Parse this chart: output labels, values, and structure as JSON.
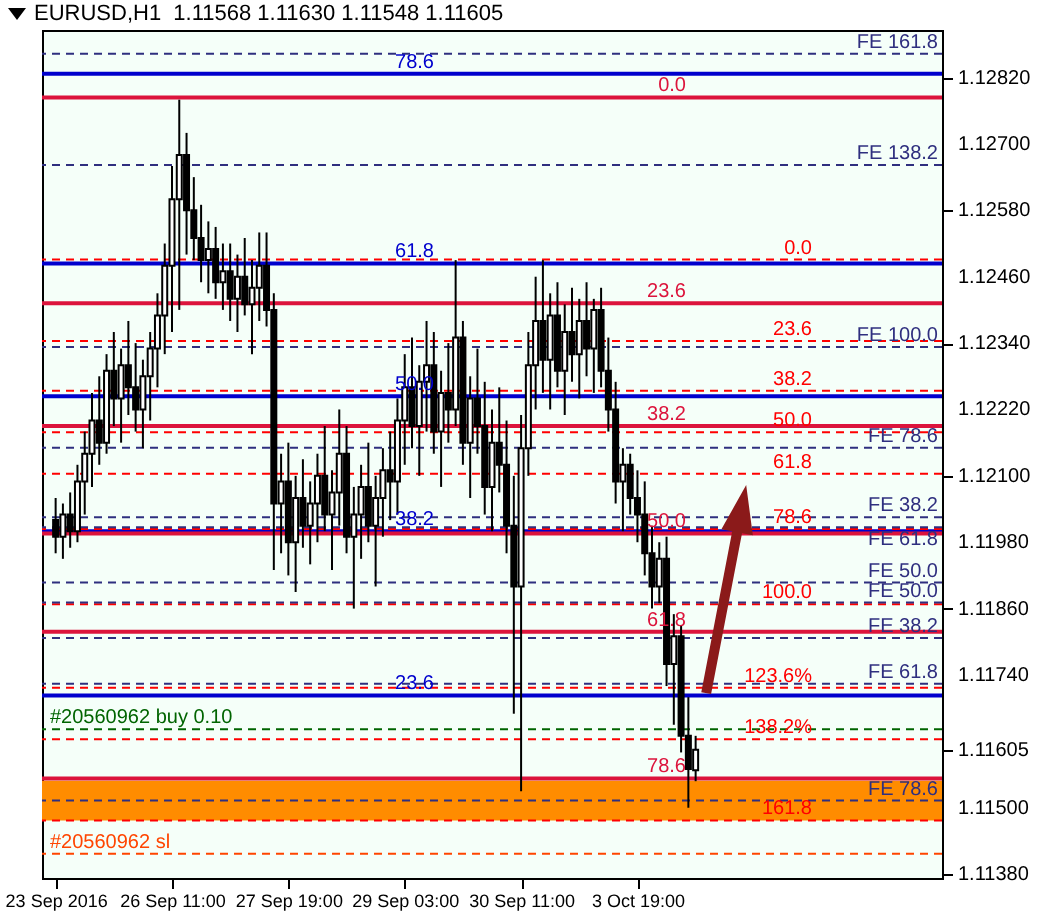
{
  "chart_data": {
    "type": "candlestick",
    "title": "EURUSD,H1  1.11568 1.11630 1.11548 1.11605",
    "color": "#000000",
    "grid": false,
    "categories": [
      "23 Sep 2016",
      null,
      null,
      null,
      null,
      null,
      null,
      null,
      null,
      null,
      null,
      null,
      null,
      null,
      null,
      null,
      "26 Sep 11:00",
      null,
      null,
      null,
      null,
      null,
      null,
      null,
      null,
      null,
      null,
      null,
      null,
      null,
      null,
      null,
      "27 Sep 19:00",
      null,
      null,
      null,
      null,
      null,
      null,
      null,
      null,
      null,
      null,
      null,
      null,
      null,
      null,
      null,
      "29 Sep 03:00",
      null,
      null,
      null,
      null,
      null,
      null,
      null,
      null,
      null,
      null,
      null,
      null,
      null,
      null,
      null,
      "30 Sep 11:00",
      null,
      null,
      null,
      null,
      null,
      null,
      null,
      null,
      null,
      null,
      null,
      null,
      null,
      null,
      null,
      "3 Oct 19:00",
      null,
      null,
      null,
      null,
      null,
      null,
      null,
      null,
      null,
      null,
      null,
      null,
      null,
      null,
      null,
      null,
      null,
      null,
      null,
      null,
      null,
      null,
      null,
      null,
      null,
      null,
      null,
      null,
      null,
      null,
      null,
      null,
      null,
      null,
      null,
      null,
      null,
      null,
      null,
      null
    ],
    "ohlc": [
      [
        1.1202,
        1.1206,
        1.1196,
        1.1199
      ],
      [
        1.1199,
        1.1205,
        1.1195,
        1.1203
      ],
      [
        1.1203,
        1.1207,
        1.1197,
        1.12
      ],
      [
        1.12,
        1.1212,
        1.1198,
        1.1209
      ],
      [
        1.1209,
        1.1218,
        1.1203,
        1.1214
      ],
      [
        1.1214,
        1.1225,
        1.1208,
        1.122
      ],
      [
        1.122,
        1.1228,
        1.1212,
        1.1216
      ],
      [
        1.1216,
        1.1232,
        1.1214,
        1.1229
      ],
      [
        1.1229,
        1.1236,
        1.1219,
        1.1224
      ],
      [
        1.1224,
        1.1233,
        1.1216,
        1.123
      ],
      [
        1.123,
        1.1238,
        1.1221,
        1.1226
      ],
      [
        1.1226,
        1.1234,
        1.1218,
        1.1222
      ],
      [
        1.1222,
        1.1231,
        1.1215,
        1.1228
      ],
      [
        1.1228,
        1.1236,
        1.122,
        1.1233
      ],
      [
        1.1233,
        1.1243,
        1.1226,
        1.1239
      ],
      [
        1.1239,
        1.1252,
        1.1232,
        1.1248
      ],
      [
        1.1248,
        1.1266,
        1.1236,
        1.126
      ],
      [
        1.126,
        1.1278,
        1.124,
        1.1268
      ],
      [
        1.1268,
        1.1272,
        1.125,
        1.1258
      ],
      [
        1.1258,
        1.1264,
        1.1249,
        1.1253
      ],
      [
        1.1253,
        1.1259,
        1.1245,
        1.1249
      ],
      [
        1.1249,
        1.1256,
        1.1243,
        1.1251
      ],
      [
        1.1251,
        1.1255,
        1.1242,
        1.1245
      ],
      [
        1.1245,
        1.1252,
        1.124,
        1.1247
      ],
      [
        1.1247,
        1.1252,
        1.1238,
        1.1242
      ],
      [
        1.1242,
        1.125,
        1.1236,
        1.1246
      ],
      [
        1.1246,
        1.1253,
        1.1239,
        1.1241
      ],
      [
        1.1241,
        1.1249,
        1.1232,
        1.1244
      ],
      [
        1.1244,
        1.1254,
        1.1238,
        1.1248
      ],
      [
        1.1248,
        1.1254,
        1.1237,
        1.124
      ],
      [
        1.124,
        1.1243,
        1.1193,
        1.1205
      ],
      [
        1.1205,
        1.1214,
        1.1196,
        1.1209
      ],
      [
        1.1209,
        1.1216,
        1.1192,
        1.1198
      ],
      [
        1.1198,
        1.121,
        1.1189,
        1.1206
      ],
      [
        1.1206,
        1.1213,
        1.1197,
        1.1201
      ],
      [
        1.1201,
        1.1209,
        1.1194,
        1.1205
      ],
      [
        1.1205,
        1.1214,
        1.1198,
        1.121
      ],
      [
        1.121,
        1.1219,
        1.12,
        1.1203
      ],
      [
        1.1203,
        1.1211,
        1.1193,
        1.1207
      ],
      [
        1.1207,
        1.1222,
        1.1201,
        1.1214
      ],
      [
        1.1214,
        1.1219,
        1.1196,
        1.1199
      ],
      [
        1.1199,
        1.1208,
        1.1186,
        1.1203
      ],
      [
        1.1203,
        1.1212,
        1.1195,
        1.1208
      ],
      [
        1.1208,
        1.1216,
        1.1198,
        1.1201
      ],
      [
        1.1201,
        1.121,
        1.119,
        1.1206
      ],
      [
        1.1206,
        1.1215,
        1.1199,
        1.1211
      ],
      [
        1.1211,
        1.1218,
        1.1202,
        1.1209
      ],
      [
        1.1209,
        1.1224,
        1.1203,
        1.122
      ],
      [
        1.122,
        1.1232,
        1.1212,
        1.1226
      ],
      [
        1.1226,
        1.1235,
        1.1215,
        1.1219
      ],
      [
        1.1219,
        1.123,
        1.121,
        1.1227
      ],
      [
        1.1227,
        1.1238,
        1.1218,
        1.123
      ],
      [
        1.123,
        1.1236,
        1.1214,
        1.1218
      ],
      [
        1.1218,
        1.1229,
        1.1208,
        1.1225
      ],
      [
        1.1225,
        1.1234,
        1.1216,
        1.1222
      ],
      [
        1.1222,
        1.1249,
        1.1219,
        1.1235
      ],
      [
        1.1235,
        1.1238,
        1.1212,
        1.1216
      ],
      [
        1.1216,
        1.1228,
        1.1206,
        1.1224
      ],
      [
        1.1224,
        1.1233,
        1.1214,
        1.1219
      ],
      [
        1.1219,
        1.1227,
        1.1203,
        1.1208
      ],
      [
        1.1208,
        1.1222,
        1.12,
        1.1216
      ],
      [
        1.1216,
        1.1226,
        1.1207,
        1.1212
      ],
      [
        1.1212,
        1.122,
        1.1196,
        1.1201
      ],
      [
        1.1201,
        1.121,
        1.1167,
        1.119
      ],
      [
        1.119,
        1.1221,
        1.1153,
        1.1215
      ],
      [
        1.1215,
        1.1236,
        1.121,
        1.123
      ],
      [
        1.123,
        1.1246,
        1.1222,
        1.1238
      ],
      [
        1.1238,
        1.1249,
        1.1225,
        1.1231
      ],
      [
        1.1231,
        1.1243,
        1.1222,
        1.1239
      ],
      [
        1.1239,
        1.1245,
        1.1226,
        1.1229
      ],
      [
        1.1229,
        1.1241,
        1.1221,
        1.1236
      ],
      [
        1.1236,
        1.1244,
        1.1227,
        1.1232
      ],
      [
        1.1232,
        1.1242,
        1.1224,
        1.1238
      ],
      [
        1.1238,
        1.1245,
        1.1228,
        1.1233
      ],
      [
        1.1233,
        1.1242,
        1.1225,
        1.124
      ],
      [
        1.124,
        1.1244,
        1.1226,
        1.1229
      ],
      [
        1.1229,
        1.1235,
        1.1218,
        1.1222
      ],
      [
        1.1222,
        1.1227,
        1.1205,
        1.1209
      ],
      [
        1.1209,
        1.1215,
        1.12,
        1.1212
      ],
      [
        1.1212,
        1.1214,
        1.1203,
        1.1206
      ],
      [
        1.1206,
        1.1211,
        1.1198,
        1.1203
      ],
      [
        1.1203,
        1.1209,
        1.1192,
        1.1196
      ],
      [
        1.1196,
        1.1201,
        1.1186,
        1.119
      ],
      [
        1.119,
        1.1198,
        1.1187,
        1.1195
      ],
      [
        1.1195,
        1.1199,
        1.1172,
        1.1176
      ],
      [
        1.1176,
        1.1185,
        1.1165,
        1.1181
      ],
      [
        1.1181,
        1.1183,
        1.116,
        1.1163
      ],
      [
        1.1163,
        1.117,
        1.115,
        1.1157
      ],
      [
        1.11568,
        1.1163,
        1.11548,
        1.11605
      ],
      null,
      null,
      null,
      null,
      null,
      null,
      null,
      null,
      null,
      null,
      null,
      null,
      null,
      null,
      null,
      null,
      null,
      null,
      null,
      null,
      null,
      null,
      null,
      null,
      null,
      null,
      null,
      null,
      null,
      null,
      null,
      null
    ],
    "ylim": [
      1.11373,
      1.12906
    ],
    "yticks": [
      {
        "value": 1.1138,
        "label": "1.11380"
      },
      {
        "value": 1.115,
        "label": "1.11500"
      },
      {
        "value": 1.11605,
        "label": "1.11605"
      },
      {
        "value": 1.1174,
        "label": "1.11740"
      },
      {
        "value": 1.1186,
        "label": "1.11860"
      },
      {
        "value": 1.1198,
        "label": "1.11980"
      },
      {
        "value": 1.121,
        "label": "1.12100"
      },
      {
        "value": 1.1222,
        "label": "1.12220"
      },
      {
        "value": 1.1234,
        "label": "1.12340"
      },
      {
        "value": 1.1246,
        "label": "1.12460"
      },
      {
        "value": 1.1258,
        "label": "1.12580"
      },
      {
        "value": 1.127,
        "label": "1.12700"
      },
      {
        "value": 1.1282,
        "label": "1.12820"
      }
    ],
    "bands": [
      {
        "axis": "y",
        "from": 1.11477,
        "to": 1.11549,
        "color": "#ff8c00"
      }
    ],
    "ref_lines": [
      {
        "axis": "y",
        "value": 1.12827,
        "color": "#0000cd",
        "line_style": "solid"
      },
      {
        "axis": "y",
        "value": 1.12484,
        "color": "#0000cd",
        "line_style": "solid"
      },
      {
        "axis": "y",
        "value": 1.12244,
        "color": "#0000cd",
        "line_style": "solid"
      },
      {
        "axis": "y",
        "value": 1.12,
        "color": "#0000cd",
        "line_style": "solid"
      },
      {
        "axis": "y",
        "value": 1.11703,
        "color": "#0000cd",
        "line_style": "solid"
      },
      {
        "axis": "y",
        "value": 1.12784,
        "color": "#dc143c",
        "line_style": "solid"
      },
      {
        "axis": "y",
        "value": 1.12412,
        "color": "#dc143c",
        "line_style": "solid"
      },
      {
        "axis": "y",
        "value": 1.1219,
        "color": "#dc143c",
        "line_style": "solid"
      },
      {
        "axis": "y",
        "value": 1.11996,
        "color": "#dc143c",
        "line_style": "solid"
      },
      {
        "axis": "y",
        "value": 1.11818,
        "color": "#dc143c",
        "line_style": "solid"
      },
      {
        "axis": "y",
        "value": 1.11553,
        "color": "#dc143c",
        "line_style": "solid"
      },
      {
        "axis": "y",
        "value": 1.12491,
        "color": "#ff0000",
        "line_style": "dashed"
      },
      {
        "axis": "y",
        "value": 1.12344,
        "color": "#ff0000",
        "line_style": "dashed"
      },
      {
        "axis": "y",
        "value": 1.12254,
        "color": "#ff0000",
        "line_style": "dashed"
      },
      {
        "axis": "y",
        "value": 1.12179,
        "color": "#ff0000",
        "line_style": "dashed"
      },
      {
        "axis": "y",
        "value": 1.12104,
        "color": "#ff0000",
        "line_style": "dashed"
      },
      {
        "axis": "y",
        "value": 1.12004,
        "color": "#ff0000",
        "line_style": "dashed"
      },
      {
        "axis": "y",
        "value": 1.11868,
        "color": "#ff0000",
        "line_style": "dashed"
      },
      {
        "axis": "y",
        "value": 1.11717,
        "color": "#ff0000",
        "line_style": "dashed"
      },
      {
        "axis": "y",
        "value": 1.11624,
        "color": "#ff0000",
        "line_style": "dashed"
      },
      {
        "axis": "y",
        "value": 1.11477,
        "color": "#ff0000",
        "line_style": "dashed"
      },
      {
        "axis": "y",
        "value": 1.12863,
        "color": "#2f2f7f",
        "line_style": "dashed"
      },
      {
        "axis": "y",
        "value": 1.12662,
        "color": "#2f2f7f",
        "line_style": "dashed"
      },
      {
        "axis": "y",
        "value": 1.12333,
        "color": "#2f2f7f",
        "line_style": "dashed"
      },
      {
        "axis": "y",
        "value": 1.12151,
        "color": "#2f2f7f",
        "line_style": "dashed"
      },
      {
        "axis": "y",
        "value": 1.12025,
        "color": "#2f2f7f",
        "line_style": "dashed"
      },
      {
        "axis": "y",
        "value": 1.12007,
        "color": "#2f2f7f",
        "line_style": "dashed"
      },
      {
        "axis": "y",
        "value": 1.11907,
        "color": "#2f2f7f",
        "line_style": "dashed"
      },
      {
        "axis": "y",
        "value": 1.11871,
        "color": "#2f2f7f",
        "line_style": "dashed"
      },
      {
        "axis": "y",
        "value": 1.11807,
        "color": "#2f2f7f",
        "line_style": "dashed"
      },
      {
        "axis": "y",
        "value": 1.11724,
        "color": "#2f2f7f",
        "line_style": "dashed"
      },
      {
        "axis": "y",
        "value": 1.11513,
        "color": "#2f2f7f",
        "line_style": "dashed"
      },
      {
        "axis": "y",
        "value": 1.11642,
        "color": "#006400",
        "line_style": "dashed"
      },
      {
        "axis": "y",
        "value": 1.11417,
        "color": "#ff4500",
        "line_style": "dashed"
      }
    ],
    "annotations": [
      {
        "text": "78.6",
        "y": 1.12827
      },
      {
        "text": "61.8",
        "y": 1.12484
      },
      {
        "text": "50.0",
        "y": 1.12244
      },
      {
        "text": "38.2",
        "y": 1.12
      },
      {
        "text": "23.6",
        "y": 1.11703
      },
      {
        "text": "0.0",
        "y": 1.12784
      },
      {
        "text": "23.6",
        "y": 1.12412
      },
      {
        "text": "38.2",
        "y": 1.1219
      },
      {
        "text": "50.0",
        "y": 1.11996
      },
      {
        "text": "61.8",
        "y": 1.11818
      },
      {
        "text": "78.6",
        "y": 1.11553
      },
      {
        "text": "0.0",
        "y": 1.12491
      },
      {
        "text": "23.6",
        "y": 1.12344
      },
      {
        "text": "38.2",
        "y": 1.12254
      },
      {
        "text": "50.0",
        "y": 1.12179
      },
      {
        "text": "61.8",
        "y": 1.12104
      },
      {
        "text": "78.6",
        "y": 1.12004
      },
      {
        "text": "100.0",
        "y": 1.11868
      },
      {
        "text": "123.6%",
        "y": 1.11717
      },
      {
        "text": "138.2%",
        "y": 1.11624
      },
      {
        "text": "161.8",
        "y": 1.11477
      },
      {
        "text": "FE 161.8",
        "y": 1.12863
      },
      {
        "text": "FE 138.2",
        "y": 1.12662
      },
      {
        "text": "FE 100.0",
        "y": 1.12333
      },
      {
        "text": "FE 78.6",
        "y": 1.12151
      },
      {
        "text": "FE 38.2",
        "y": 1.12025
      },
      {
        "text": "FE 61.8",
        "y": 1.12007
      },
      {
        "text": "FE 50.0",
        "y": 1.11907
      },
      {
        "text": "FE 50.0",
        "y": 1.11871
      },
      {
        "text": "FE 38.2",
        "y": 1.11807
      },
      {
        "text": "FE 61.8",
        "y": 1.11724
      },
      {
        "text": "FE 78.6",
        "y": 1.11513
      },
      {
        "text": "#20560962 buy 0.10",
        "y": 1.11642
      },
      {
        "text": "#20560962 sl",
        "y": 1.11417
      }
    ]
  }
}
